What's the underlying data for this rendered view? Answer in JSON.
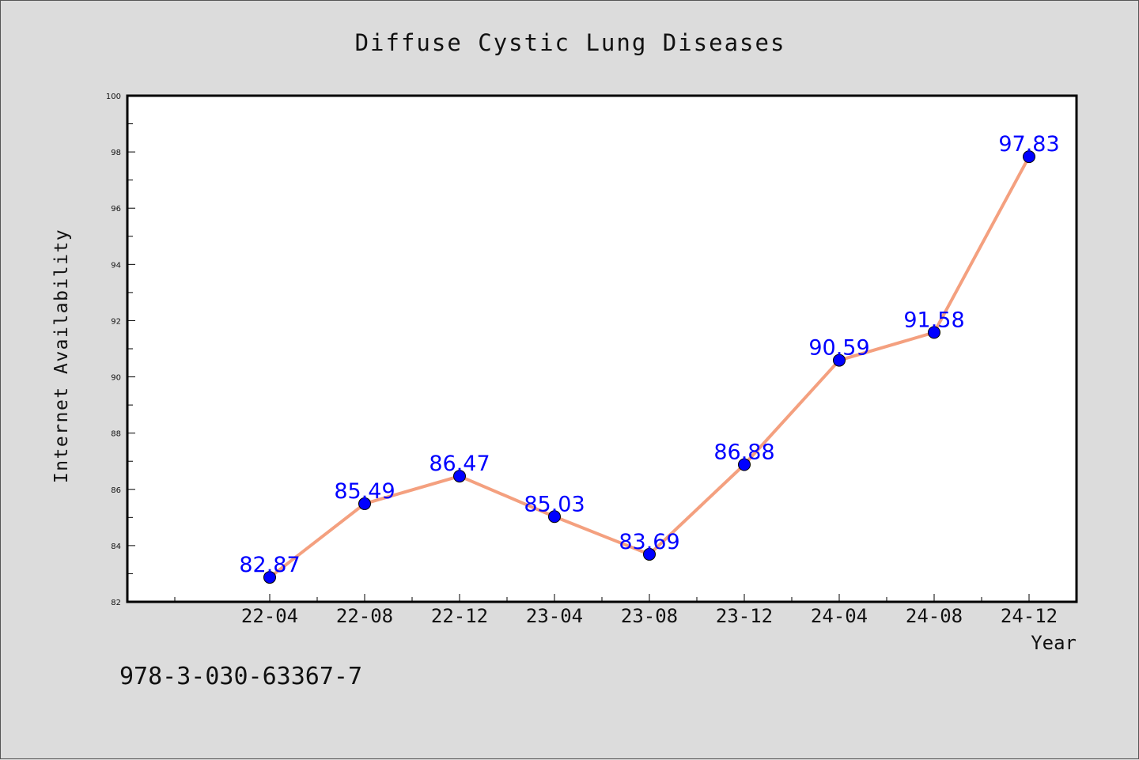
{
  "chart_data": {
    "type": "line",
    "title": "Diffuse Cystic Lung Diseases",
    "xlabel": "Year",
    "ylabel": "Internet Availability",
    "categories": [
      "22-04",
      "22-08",
      "22-12",
      "23-04",
      "23-08",
      "23-12",
      "24-04",
      "24-08",
      "24-12"
    ],
    "series": [
      {
        "values": [
          82.87,
          85.49,
          86.47,
          85.03,
          83.69,
          86.88,
          90.59,
          91.58,
          97.83
        ],
        "data_labels": [
          "82.87",
          "85.49",
          "86.47",
          "85.03",
          "83.69",
          "86.88",
          "90.59",
          "91.58",
          "97.83"
        ],
        "line_color": "#f4a07f",
        "marker_color": "#0000ff"
      }
    ],
    "ylim": [
      82,
      100
    ],
    "yticks": [
      "82",
      "84",
      "86",
      "88",
      "90",
      "92",
      "94",
      "96",
      "98",
      "100"
    ],
    "grid": false,
    "legend": "none"
  },
  "footer": {
    "text": "978-3-030-63367-7"
  },
  "colors": {
    "background": "#dcdcdc",
    "plot_area": "#ffffff",
    "line": "#f4a07f",
    "marker": "#0000ff",
    "data_label": "#0000ff"
  }
}
